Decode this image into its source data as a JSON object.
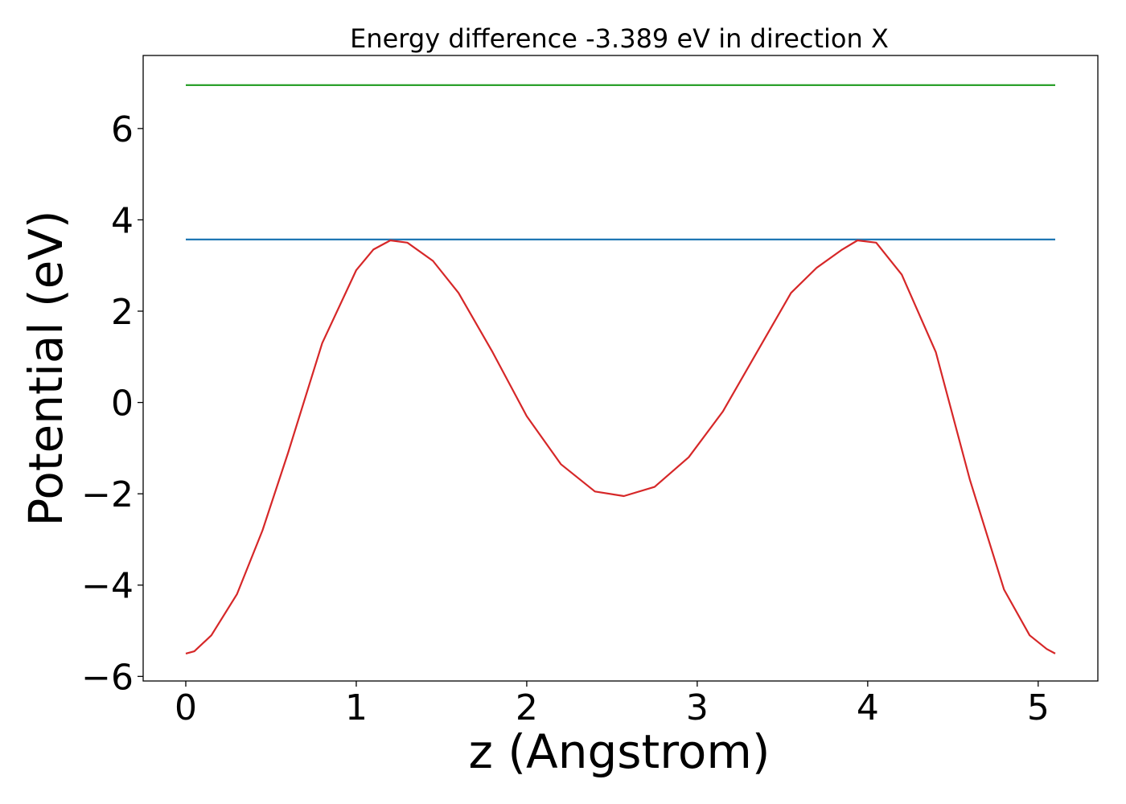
{
  "chart_data": {
    "type": "line",
    "title": "Energy difference -3.389 eV in direction X",
    "xlabel": "z (Angstrom)",
    "ylabel": "Potential (eV)",
    "xlim": [
      -0.25,
      5.35
    ],
    "ylim": [
      -6.1,
      7.6
    ],
    "x_ticks": [
      0,
      1,
      2,
      3,
      4,
      5
    ],
    "x_tick_labels": [
      "0",
      "1",
      "2",
      "3",
      "4",
      "5"
    ],
    "y_ticks": [
      -6,
      -4,
      -2,
      0,
      2,
      4,
      6
    ],
    "y_tick_labels": [
      "−6",
      "−4",
      "−2",
      "0",
      "2",
      "4",
      "6"
    ],
    "grid": false,
    "series": [
      {
        "color": "#2ca02c",
        "x": [
          0,
          5.1
        ],
        "y": [
          6.95,
          6.95
        ]
      },
      {
        "color": "#1f77b4",
        "x": [
          0,
          5.1
        ],
        "y": [
          3.57,
          3.57
        ]
      },
      {
        "color": "#d62728",
        "x": [
          0,
          0.05,
          0.15,
          0.3,
          0.45,
          0.6,
          0.8,
          1.0,
          1.1,
          1.2,
          1.3,
          1.45,
          1.6,
          1.8,
          2.0,
          2.2,
          2.4,
          2.57,
          2.75,
          2.95,
          3.15,
          3.35,
          3.55,
          3.7,
          3.85,
          3.94,
          4.05,
          4.2,
          4.4,
          4.6,
          4.8,
          4.95,
          5.05,
          5.1
        ],
        "y": [
          -5.5,
          -5.45,
          -5.1,
          -4.2,
          -2.8,
          -1.1,
          1.3,
          2.9,
          3.35,
          3.55,
          3.5,
          3.1,
          2.4,
          1.1,
          -0.3,
          -1.35,
          -1.95,
          -2.05,
          -1.85,
          -1.2,
          -0.2,
          1.1,
          2.4,
          2.95,
          3.35,
          3.55,
          3.5,
          2.8,
          1.1,
          -1.7,
          -4.1,
          -5.1,
          -5.4,
          -5.5
        ]
      }
    ]
  }
}
